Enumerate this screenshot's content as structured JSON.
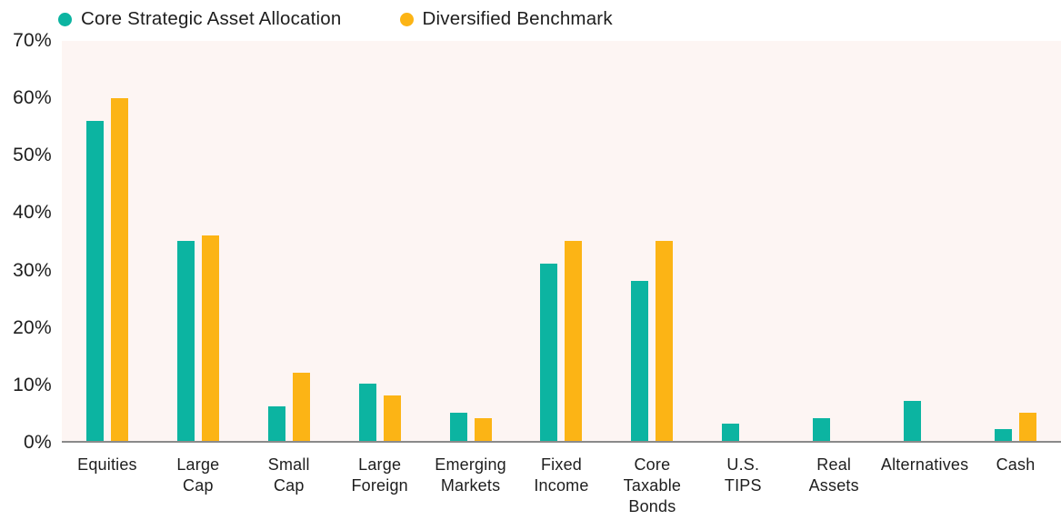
{
  "legend": {
    "items": [
      {
        "label": "Core Strategic Asset Allocation",
        "color": "#0cb4a1"
      },
      {
        "label": "Diversified Benchmark",
        "color": "#fcb415"
      }
    ]
  },
  "chart_data": {
    "type": "bar",
    "title": "",
    "xlabel": "",
    "ylabel": "",
    "ylim": [
      0,
      70
    ],
    "y_ticks": [
      "70%",
      "60%",
      "50%",
      "40%",
      "30%",
      "20%",
      "10%",
      "0%"
    ],
    "grid": false,
    "legend_position": "top-left",
    "plot_background": "#fdf5f3",
    "axis_line_color": "#8a8a8a",
    "categories": [
      "Equities",
      "Large\nCap",
      "Small\nCap",
      "Large\nForeign",
      "Emerging\nMarkets",
      "Fixed\nIncome",
      "Core\nTaxable\nBonds",
      "U.S.\nTIPS",
      "Real\nAssets",
      "Alternatives",
      "Cash"
    ],
    "series": [
      {
        "name": "Core Strategic Asset Allocation",
        "color": "#0cb4a1",
        "values": [
          56,
          35,
          6,
          10,
          5,
          31,
          28,
          3,
          4,
          7,
          2
        ]
      },
      {
        "name": "Diversified Benchmark",
        "color": "#fcb415",
        "values": [
          60,
          36,
          12,
          8,
          4,
          35,
          35,
          0,
          0,
          0,
          5
        ]
      }
    ]
  }
}
